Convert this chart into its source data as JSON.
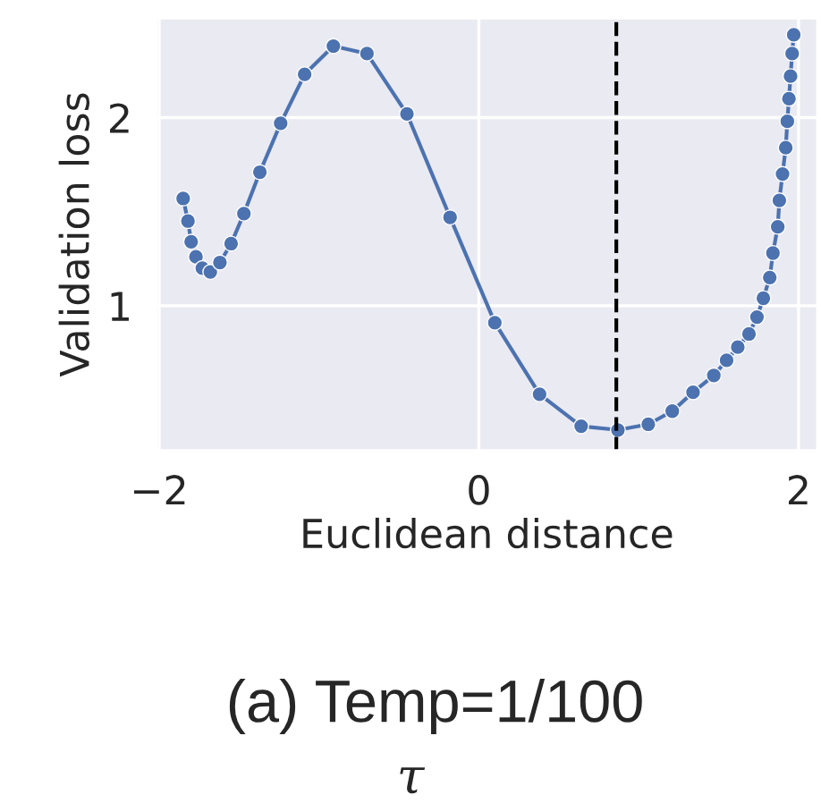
{
  "chart_data": {
    "type": "line",
    "xlabel": "Euclidean distance",
    "ylabel": "Validation loss",
    "x": [
      -1.85,
      -1.82,
      -1.8,
      -1.77,
      -1.73,
      -1.68,
      -1.62,
      -1.55,
      -1.47,
      -1.37,
      -1.24,
      -1.09,
      -0.91,
      -0.7,
      -0.45,
      -0.18,
      0.1,
      0.38,
      0.64,
      0.87,
      1.06,
      1.21,
      1.34,
      1.47,
      1.55,
      1.62,
      1.69,
      1.74,
      1.78,
      1.82,
      1.84,
      1.87,
      1.88,
      1.9,
      1.92,
      1.93,
      1.94,
      1.95,
      1.96,
      1.97
    ],
    "series": [
      {
        "color": "#4c72b0",
        "values": [
          1.57,
          1.45,
          1.34,
          1.26,
          1.2,
          1.18,
          1.23,
          1.33,
          1.49,
          1.71,
          1.97,
          2.23,
          2.38,
          2.34,
          2.02,
          1.47,
          0.91,
          0.53,
          0.36,
          0.34,
          0.37,
          0.44,
          0.54,
          0.63,
          0.71,
          0.78,
          0.85,
          0.94,
          1.04,
          1.15,
          1.28,
          1.42,
          1.56,
          1.7,
          1.84,
          1.98,
          2.1,
          2.22,
          2.34,
          2.44
        ]
      }
    ],
    "xlim": [
      -2.02,
      2.12
    ],
    "ylim": [
      0.23,
      2.53
    ],
    "xticks": [
      {
        "value": -2,
        "label": "−2"
      },
      0,
      2
    ],
    "yticks": [
      1,
      2
    ],
    "grid": true,
    "marker": "circle",
    "line_style": "solid",
    "ref_lines": [
      {
        "axis": "x",
        "value": 0.86,
        "color": "#000000",
        "line_style": "dashed"
      }
    ],
    "annotations": [
      "(a) Temp=1/100",
      "τ"
    ]
  }
}
